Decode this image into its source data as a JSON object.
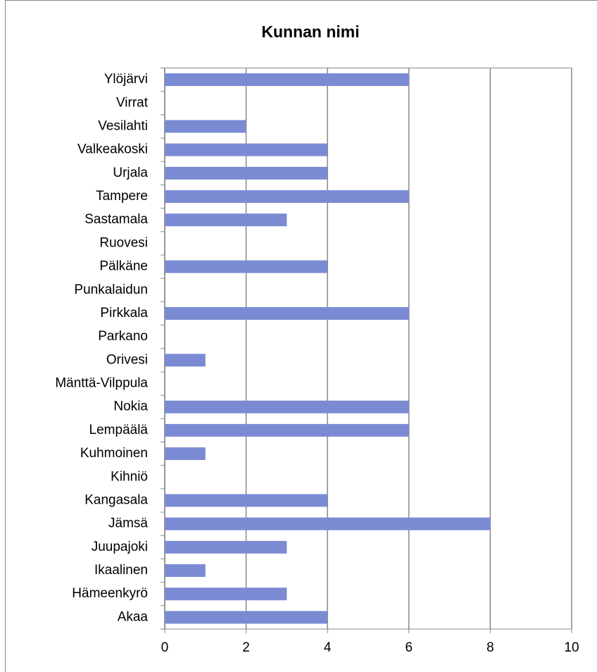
{
  "chart_data": {
    "type": "bar",
    "orientation": "horizontal",
    "title": "Kunnan nimi",
    "categories": [
      "Ylöjärvi",
      "Virrat",
      "Vesilahti",
      "Valkeakoski",
      "Urjala",
      "Tampere",
      "Sastamala",
      "Ruovesi",
      "Pälkäne",
      "Punkalaidun",
      "Pirkkala",
      "Parkano",
      "Orivesi",
      "Mänttä-Vilppula",
      "Nokia",
      "Lempäälä",
      "Kuhmoinen",
      "Kihniö",
      "Kangasala",
      "Jämsä",
      "Juupajoki",
      "Ikaalinen",
      "Hämeenkyrö",
      "Akaa"
    ],
    "values": [
      6,
      0,
      2,
      4,
      4,
      6,
      3,
      0,
      4,
      0,
      6,
      0,
      1,
      0,
      6,
      6,
      1,
      0,
      4,
      8,
      3,
      1,
      3,
      4
    ],
    "color": "#7b8bd3",
    "xlim": [
      0,
      10
    ],
    "xticks": [
      0,
      2,
      4,
      6,
      8,
      10
    ],
    "grid": true
  }
}
